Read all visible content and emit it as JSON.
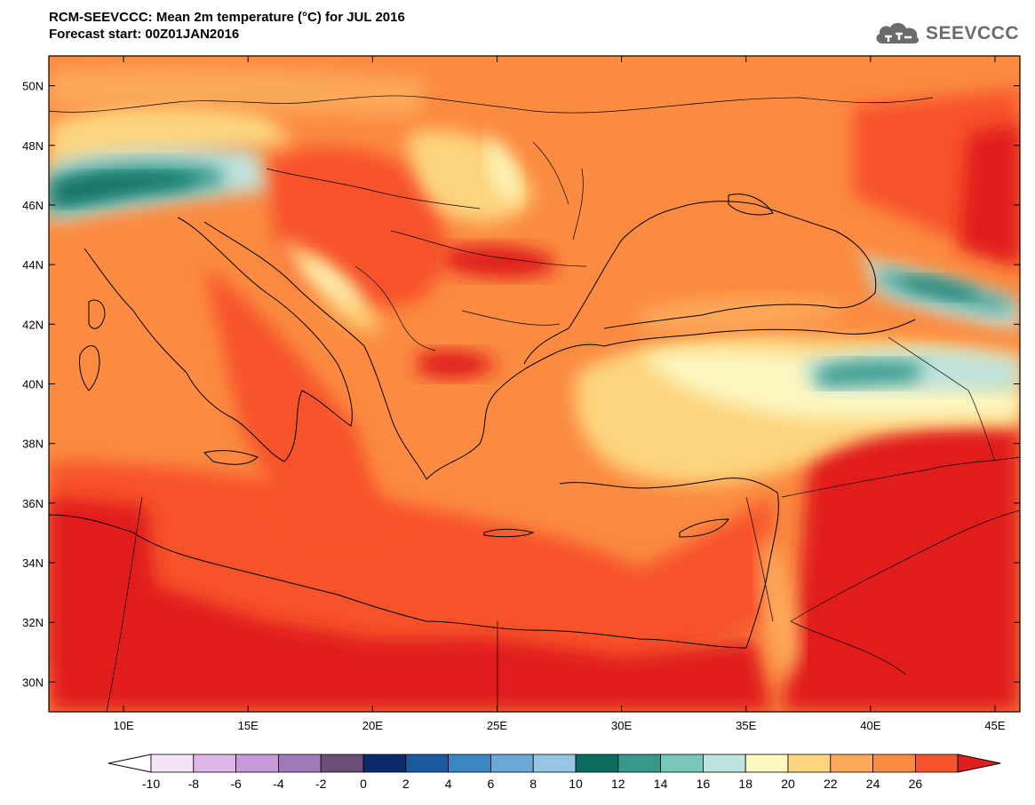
{
  "title_line1": "RCM-SEEVCCC: Mean 2m temperature (°C) for JUL 2016",
  "title_line2": "Forecast start: 00Z01JAN2016",
  "logo_text": "SEEVCCC",
  "map": {
    "lon_range": [
      7,
      46
    ],
    "lat_range": [
      29,
      51
    ],
    "lat_ticks": [
      "50N",
      "48N",
      "46N",
      "44N",
      "42N",
      "40N",
      "38N",
      "36N",
      "34N",
      "32N",
      "30N"
    ],
    "lat_tick_values": [
      50,
      48,
      46,
      44,
      42,
      40,
      38,
      36,
      34,
      32,
      30
    ],
    "lon_ticks": [
      "10E",
      "15E",
      "20E",
      "25E",
      "30E",
      "35E",
      "40E",
      "45E"
    ],
    "lon_tick_values": [
      10,
      15,
      20,
      25,
      30,
      35,
      40,
      45
    ]
  },
  "colorbar": {
    "labels": [
      "-10",
      "-8",
      "-6",
      "-4",
      "-2",
      "0",
      "2",
      "4",
      "6",
      "8",
      "10",
      "12",
      "14",
      "16",
      "18",
      "20",
      "22",
      "24",
      "26"
    ],
    "colors": [
      "#f3e4f6",
      "#dcb7e8",
      "#c79bd9",
      "#a07ab9",
      "#6b4f77",
      "#0b2a6b",
      "#1a5aa0",
      "#3a87c4",
      "#68a9d8",
      "#98c5e4",
      "#0b6b5e",
      "#35988a",
      "#79c7b9",
      "#bfe3de",
      "#fdf7c0",
      "#fcd57e",
      "#fca95a",
      "#fb8b41",
      "#f7532c",
      "#e01e1e"
    ],
    "under_color": "#ffffff",
    "over_color": "#e01e1e"
  },
  "colors": {
    "background_field": "#fb8b41",
    "coastline": "#000000"
  }
}
